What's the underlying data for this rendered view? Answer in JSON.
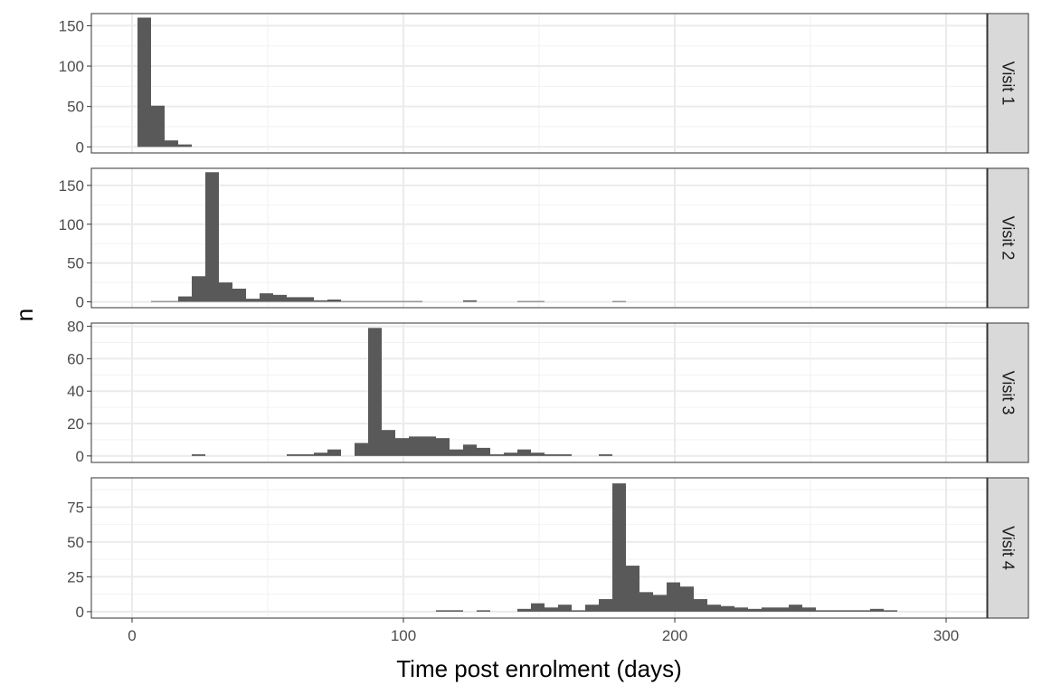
{
  "chart_data": {
    "type": "bar",
    "chart_kind": "faceted histogram",
    "xlabel": "Time post enrolment (days)",
    "ylabel": "n",
    "xlim": [
      -15,
      315
    ],
    "x_ticks": [
      0,
      100,
      200,
      300
    ],
    "bin_width": 5,
    "grid": true,
    "facet_strip_position": "right",
    "colors": {
      "bar": "#595959",
      "panel_border": "#333333",
      "strip_fill": "#d9d9d9",
      "grid_major": "#ebebeb",
      "grid_minor": "#f2f2f2",
      "tick_label": "#4d4d4d"
    },
    "facets": [
      {
        "label": "Visit 1",
        "ylim": [
          -7.5,
          165
        ],
        "y_ticks": [
          0,
          50,
          100,
          150
        ],
        "bins": [
          {
            "x0": 2,
            "x1": 7,
            "n": 160
          },
          {
            "x0": 7,
            "x1": 12,
            "n": 51
          },
          {
            "x0": 12,
            "x1": 17,
            "n": 8
          },
          {
            "x0": 17,
            "x1": 22,
            "n": 3
          }
        ]
      },
      {
        "label": "Visit 2",
        "ylim": [
          -7.5,
          172
        ],
        "y_ticks": [
          0,
          50,
          100,
          150
        ],
        "bins": [
          {
            "x0": 7,
            "x1": 12,
            "n": 1
          },
          {
            "x0": 12,
            "x1": 17,
            "n": 1
          },
          {
            "x0": 17,
            "x1": 22,
            "n": 7
          },
          {
            "x0": 22,
            "x1": 27,
            "n": 33
          },
          {
            "x0": 27,
            "x1": 32,
            "n": 167
          },
          {
            "x0": 32,
            "x1": 37,
            "n": 25
          },
          {
            "x0": 37,
            "x1": 42,
            "n": 17
          },
          {
            "x0": 42,
            "x1": 47,
            "n": 4
          },
          {
            "x0": 47,
            "x1": 52,
            "n": 11
          },
          {
            "x0": 52,
            "x1": 57,
            "n": 9
          },
          {
            "x0": 57,
            "x1": 62,
            "n": 6
          },
          {
            "x0": 62,
            "x1": 67,
            "n": 6
          },
          {
            "x0": 67,
            "x1": 72,
            "n": 2
          },
          {
            "x0": 72,
            "x1": 77,
            "n": 3
          },
          {
            "x0": 77,
            "x1": 82,
            "n": 1
          },
          {
            "x0": 82,
            "x1": 87,
            "n": 1
          },
          {
            "x0": 87,
            "x1": 92,
            "n": 1
          },
          {
            "x0": 92,
            "x1": 97,
            "n": 1
          },
          {
            "x0": 97,
            "x1": 102,
            "n": 1
          },
          {
            "x0": 102,
            "x1": 107,
            "n": 1
          },
          {
            "x0": 122,
            "x1": 127,
            "n": 2
          },
          {
            "x0": 142,
            "x1": 147,
            "n": 1
          },
          {
            "x0": 147,
            "x1": 152,
            "n": 1
          },
          {
            "x0": 177,
            "x1": 182,
            "n": 1
          }
        ]
      },
      {
        "label": "Visit 3",
        "ylim": [
          -4,
          82
        ],
        "y_ticks": [
          0,
          20,
          40,
          60,
          80
        ],
        "bins": [
          {
            "x0": 22,
            "x1": 27,
            "n": 1
          },
          {
            "x0": 57,
            "x1": 62,
            "n": 1
          },
          {
            "x0": 62,
            "x1": 67,
            "n": 1
          },
          {
            "x0": 67,
            "x1": 72,
            "n": 2
          },
          {
            "x0": 72,
            "x1": 77,
            "n": 4
          },
          {
            "x0": 82,
            "x1": 87,
            "n": 8
          },
          {
            "x0": 87,
            "x1": 92,
            "n": 79
          },
          {
            "x0": 92,
            "x1": 97,
            "n": 16
          },
          {
            "x0": 97,
            "x1": 102,
            "n": 11
          },
          {
            "x0": 102,
            "x1": 107,
            "n": 12
          },
          {
            "x0": 107,
            "x1": 112,
            "n": 12
          },
          {
            "x0": 112,
            "x1": 117,
            "n": 11
          },
          {
            "x0": 117,
            "x1": 122,
            "n": 4
          },
          {
            "x0": 122,
            "x1": 127,
            "n": 7
          },
          {
            "x0": 127,
            "x1": 132,
            "n": 5
          },
          {
            "x0": 132,
            "x1": 137,
            "n": 1
          },
          {
            "x0": 137,
            "x1": 142,
            "n": 2
          },
          {
            "x0": 142,
            "x1": 147,
            "n": 4
          },
          {
            "x0": 147,
            "x1": 152,
            "n": 2
          },
          {
            "x0": 152,
            "x1": 157,
            "n": 1
          },
          {
            "x0": 157,
            "x1": 162,
            "n": 1
          },
          {
            "x0": 172,
            "x1": 177,
            "n": 1
          }
        ]
      },
      {
        "label": "Visit 4",
        "ylim": [
          -4.6,
          96
        ],
        "y_ticks": [
          0,
          25,
          50,
          75
        ],
        "bins": [
          {
            "x0": 112,
            "x1": 117,
            "n": 1
          },
          {
            "x0": 117,
            "x1": 122,
            "n": 1
          },
          {
            "x0": 127,
            "x1": 132,
            "n": 1
          },
          {
            "x0": 142,
            "x1": 147,
            "n": 2
          },
          {
            "x0": 147,
            "x1": 152,
            "n": 6
          },
          {
            "x0": 152,
            "x1": 157,
            "n": 3
          },
          {
            "x0": 157,
            "x1": 162,
            "n": 5
          },
          {
            "x0": 162,
            "x1": 167,
            "n": 1
          },
          {
            "x0": 167,
            "x1": 172,
            "n": 5
          },
          {
            "x0": 172,
            "x1": 177,
            "n": 9
          },
          {
            "x0": 177,
            "x1": 182,
            "n": 92
          },
          {
            "x0": 182,
            "x1": 187,
            "n": 33
          },
          {
            "x0": 187,
            "x1": 192,
            "n": 14
          },
          {
            "x0": 192,
            "x1": 197,
            "n": 12
          },
          {
            "x0": 197,
            "x1": 202,
            "n": 21
          },
          {
            "x0": 202,
            "x1": 207,
            "n": 18
          },
          {
            "x0": 207,
            "x1": 212,
            "n": 9
          },
          {
            "x0": 212,
            "x1": 217,
            "n": 5
          },
          {
            "x0": 217,
            "x1": 222,
            "n": 4
          },
          {
            "x0": 222,
            "x1": 227,
            "n": 3
          },
          {
            "x0": 227,
            "x1": 232,
            "n": 2
          },
          {
            "x0": 232,
            "x1": 237,
            "n": 3
          },
          {
            "x0": 237,
            "x1": 242,
            "n": 3
          },
          {
            "x0": 242,
            "x1": 247,
            "n": 5
          },
          {
            "x0": 247,
            "x1": 252,
            "n": 3
          },
          {
            "x0": 252,
            "x1": 257,
            "n": 1
          },
          {
            "x0": 257,
            "x1": 262,
            "n": 1
          },
          {
            "x0": 262,
            "x1": 267,
            "n": 1
          },
          {
            "x0": 267,
            "x1": 272,
            "n": 1
          },
          {
            "x0": 272,
            "x1": 277,
            "n": 2
          },
          {
            "x0": 277,
            "x1": 282,
            "n": 1
          }
        ]
      }
    ]
  }
}
